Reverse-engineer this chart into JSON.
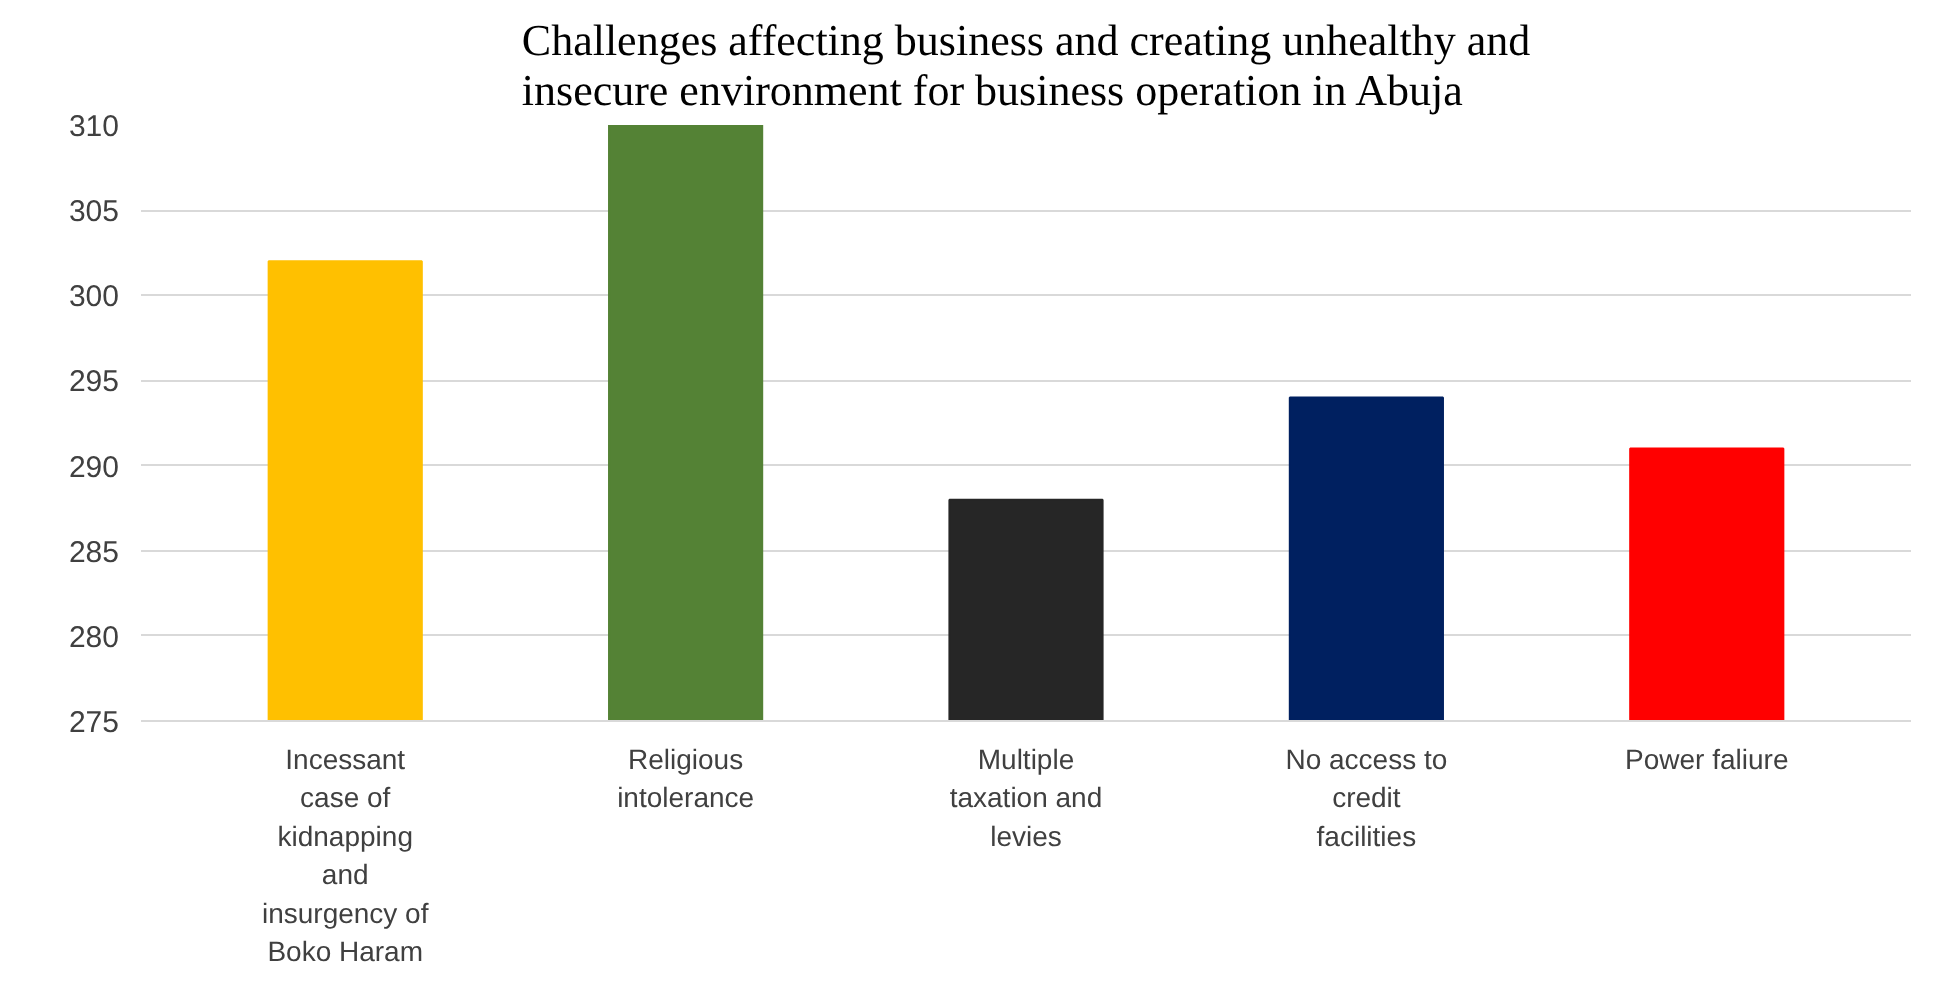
{
  "chart_data": {
    "type": "bar",
    "title": "Challenges affecting business and creating unhealthy and\ninsecure environment for business operation in Abuja",
    "categories": [
      "Incessant\ncase of\nkidnapping\nand\ninsurgency of\nBoko Haram",
      "Religious\nintolerance",
      "Multiple\ntaxation and\nlevies",
      "No access to\ncredit\nfacilities",
      "Power faliure"
    ],
    "values": [
      302,
      310,
      288,
      294,
      291
    ],
    "colors": [
      "#ffc000",
      "#548235",
      "#262626",
      "#002060",
      "#ff0000"
    ],
    "ylim": [
      275,
      310
    ],
    "yticks": [
      275,
      280,
      285,
      290,
      295,
      300,
      305,
      310
    ],
    "grid": "y"
  }
}
